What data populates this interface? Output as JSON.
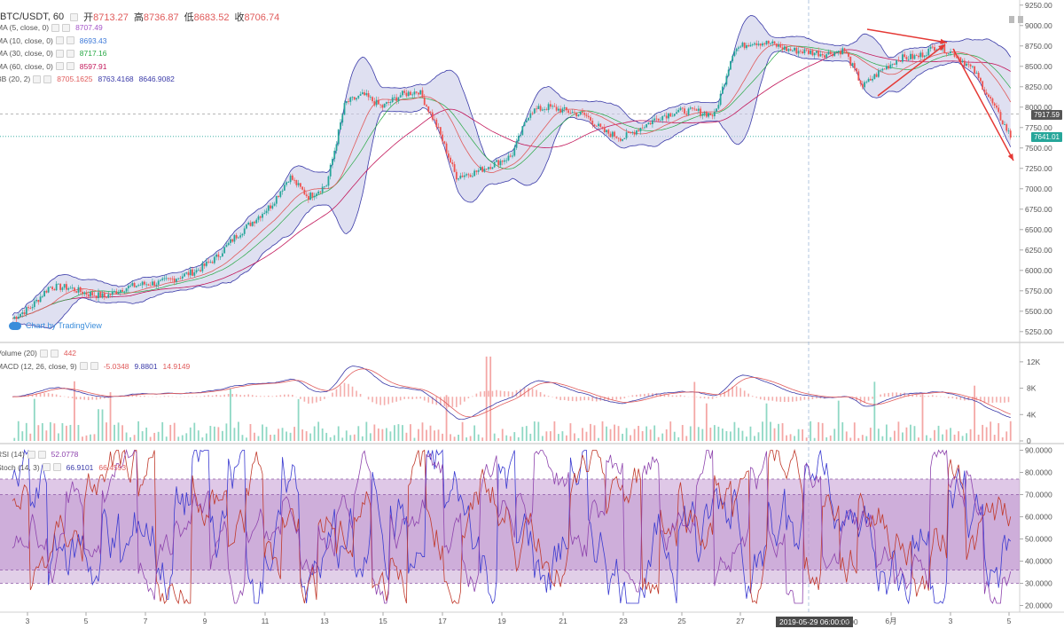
{
  "header": {
    "symbol": "BTC/USDT, 60",
    "ohlc": [
      {
        "label": "开",
        "value": "8713.27"
      },
      {
        "label": "高",
        "value": "8736.87"
      },
      {
        "label": "低",
        "value": "8683.52"
      },
      {
        "label": "收",
        "value": "8706.74"
      }
    ]
  },
  "indicators_main": [
    {
      "name": "MA (5, close, 0)",
      "values": [
        "8707.49"
      ],
      "colors": [
        "#a557c9"
      ]
    },
    {
      "name": "MA (10, close, 0)",
      "values": [
        "8693.43"
      ],
      "colors": [
        "#3c78d8"
      ]
    },
    {
      "name": "MA (30, close, 0)",
      "values": [
        "8717.16"
      ],
      "colors": [
        "#27a844"
      ]
    },
    {
      "name": "MA (60, close, 0)",
      "values": [
        "8597.91"
      ],
      "colors": [
        "#c2185b"
      ]
    },
    {
      "name": "BB (20, 2)",
      "values": [
        "8705.1625",
        "8763.4168",
        "8646.9082"
      ],
      "colors": [
        "#e05b5b",
        "#3a3aa8",
        "#3a3aa8"
      ]
    }
  ],
  "indicators_mid": [
    {
      "name": "Volume (20)",
      "values": [
        "442"
      ],
      "colors": [
        "#e05b5b"
      ]
    },
    {
      "name": "MACD (12, 26, close, 9)",
      "values": [
        "-5.0348",
        "9.8801",
        "14.9149"
      ],
      "colors": [
        "#e05b5b",
        "#3a3aa8",
        "#e05b5b"
      ]
    }
  ],
  "indicators_low": [
    {
      "name": "RSI (14)",
      "values": [
        "52.0778"
      ],
      "colors": [
        "#8e44ad"
      ]
    },
    {
      "name": "Stoch (14, 3)",
      "values": [
        "66.9101",
        "66.4593"
      ],
      "colors": [
        "#3a3aa8",
        "#e05b5b"
      ]
    }
  ],
  "watermark": "Chart by TradingView",
  "price_tags": [
    {
      "value": "7917.59",
      "color": "#555555"
    },
    {
      "value": "7641.01",
      "color": "#26a69a"
    }
  ],
  "crosshair_time": "2019-05-29 06:00:00",
  "crosshair_time_suffix": "2:00",
  "month_label": "6月",
  "chart_data": [
    {
      "type": "candlestick",
      "title": "BTC/USDT, 60",
      "x": [
        "3",
        "5",
        "7",
        "9",
        "11",
        "13",
        "15",
        "17",
        "19",
        "21",
        "23",
        "25",
        "27",
        "2:00",
        "6月",
        "3",
        "5"
      ],
      "x_tick_labels": [
        "3",
        "5",
        "7",
        "9",
        "11",
        "13",
        "15",
        "17",
        "19",
        "21",
        "23",
        "25",
        "27",
        "6月",
        "3",
        "5"
      ],
      "y_tick_labels": [
        "9250.00",
        "9000.00",
        "8750.00",
        "8500.00",
        "8250.00",
        "8000.00",
        "7750.00",
        "7500.00",
        "7250.00",
        "7000.00",
        "6750.00",
        "6500.00",
        "6250.00",
        "6000.00",
        "5750.00",
        "5500.00",
        "5250.00"
      ],
      "ylim": [
        5150,
        9280
      ],
      "close_path": [
        [
          0,
          5410
        ],
        [
          1,
          5550
        ],
        [
          2,
          5800
        ],
        [
          3,
          5790
        ],
        [
          4,
          5720
        ],
        [
          5,
          5680
        ],
        [
          6,
          5780
        ],
        [
          7,
          5830
        ],
        [
          8,
          5850
        ],
        [
          9,
          5920
        ],
        [
          10,
          6000
        ],
        [
          11,
          6150
        ],
        [
          12,
          6400
        ],
        [
          13,
          6600
        ],
        [
          14,
          6800
        ],
        [
          15,
          7150
        ],
        [
          16,
          6900
        ],
        [
          17,
          7050
        ],
        [
          18,
          8050
        ],
        [
          19,
          8150
        ],
        [
          20,
          8000
        ],
        [
          21,
          8150
        ],
        [
          22,
          8200
        ],
        [
          23,
          7750
        ],
        [
          24,
          7150
        ],
        [
          25,
          7200
        ],
        [
          26,
          7300
        ],
        [
          27,
          7400
        ],
        [
          28,
          7950
        ],
        [
          29,
          8000
        ],
        [
          30,
          7950
        ],
        [
          31,
          7900
        ],
        [
          32,
          7700
        ],
        [
          33,
          7620
        ],
        [
          34,
          7750
        ],
        [
          35,
          7880
        ],
        [
          36,
          7950
        ],
        [
          37,
          7950
        ],
        [
          38,
          7900
        ],
        [
          39,
          8700
        ],
        [
          40,
          8800
        ],
        [
          41,
          8780
        ],
        [
          42,
          8700
        ],
        [
          43,
          8680
        ],
        [
          44,
          8650
        ],
        [
          45,
          8700
        ],
        [
          46,
          8250
        ],
        [
          47,
          8450
        ],
        [
          48,
          8600
        ],
        [
          49,
          8620
        ],
        [
          50,
          8750
        ],
        [
          51,
          8650
        ],
        [
          52,
          8450
        ],
        [
          53,
          8050
        ],
        [
          54,
          7641
        ]
      ],
      "annotations": [
        "Chart by TradingView"
      ]
    },
    {
      "type": "bar",
      "title": "Volume (20)",
      "y_tick_labels": [
        "12K",
        "8K",
        "4K",
        "0"
      ],
      "ylim": [
        0,
        14000
      ]
    },
    {
      "type": "line",
      "title": "RSI (14)",
      "y_tick_labels": [
        "90.0000",
        "80.0000",
        "70.0000",
        "60.0000",
        "50.0000",
        "40.0000",
        "30.0000",
        "20.0000"
      ],
      "ylim": [
        17,
        93
      ],
      "bands": {
        "rsi_upper": 70,
        "rsi_lower": 30,
        "stoch_upper": 77,
        "stoch_lower": 36
      }
    }
  ]
}
